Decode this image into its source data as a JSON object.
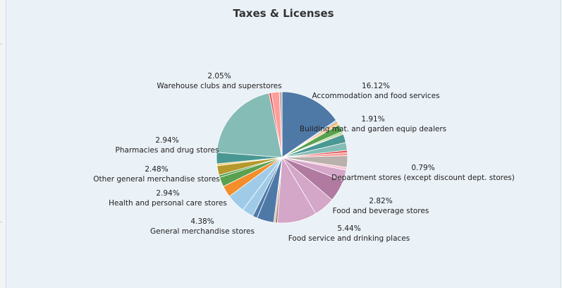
{
  "chart_data": {
    "type": "pie",
    "title": "Taxes & Licenses",
    "slices": [
      {
        "label": "Accommodation and food services",
        "value": 16.12,
        "color": "#4e79a7",
        "show_label": true,
        "display": "16.12%"
      },
      {
        "label": "",
        "value": 0.45,
        "color": "#a0cbe8",
        "show_label": false
      },
      {
        "label": "",
        "value": 0.45,
        "color": "#f28e2b",
        "show_label": false
      },
      {
        "label": "",
        "value": 0.45,
        "color": "#ffbe7d",
        "show_label": false
      },
      {
        "label": "Building mat. and garden equip dealers",
        "value": 1.91,
        "color": "#59a14f",
        "show_label": true,
        "display": "1.91%"
      },
      {
        "label": "",
        "value": 0.45,
        "color": "#8cd17d",
        "show_label": false
      },
      {
        "label": "",
        "value": 0.3,
        "color": "#b6992d",
        "show_label": false
      },
      {
        "label": "",
        "value": 2.2,
        "color": "#499894",
        "show_label": false
      },
      {
        "label": "",
        "value": 2.0,
        "color": "#86bcb6",
        "show_label": false
      },
      {
        "label": "",
        "value": 0.6,
        "color": "#e15759",
        "show_label": false
      },
      {
        "label": "Department stores (except discount dept. stores)",
        "value": 0.79,
        "color": "#ff9d9a",
        "show_label": true,
        "display": "0.79%"
      },
      {
        "label": "",
        "value": 3.0,
        "color": "#bab0ac",
        "show_label": false
      },
      {
        "label": "",
        "value": 0.7,
        "color": "#fabfd2",
        "show_label": false
      },
      {
        "label": "Food and beverage stores",
        "value": 2.82,
        "color": "#d4a6c8",
        "show_label": false,
        "display": "2.82%"
      },
      {
        "label": "",
        "value": 5.6,
        "color": "#b07aa1",
        "show_label": false
      },
      {
        "label": "Food service and drinking places",
        "value": 5.44,
        "color": "#d4a6c8",
        "show_label": true,
        "display": "5.44%"
      },
      {
        "label": "",
        "value": 10.2,
        "color": "#d4a6c8",
        "show_label": false
      },
      {
        "label": "",
        "value": 0.5,
        "color": "#9d7660",
        "show_label": false
      },
      {
        "label": "",
        "value": 0.45,
        "color": "#d7b5a6",
        "show_label": false
      },
      {
        "label": "General merchandise stores",
        "value": 4.38,
        "color": "#4e79a7",
        "show_label": false,
        "display": "4.38%"
      },
      {
        "label": "",
        "value": 1.2,
        "color": "#4e79a7",
        "show_label": false
      },
      {
        "label": "Health and personal care stores",
        "value": 2.94,
        "color": "#a0cbe8",
        "show_label": true,
        "display": "2.94%"
      },
      {
        "label": "",
        "value": 4.9,
        "color": "#a0cbe8",
        "show_label": false
      },
      {
        "label": "",
        "value": 2.94,
        "color": "#f28e2b",
        "show_label": false
      },
      {
        "label": "Other general merchandise stores",
        "value": 2.48,
        "color": "#59a14f",
        "show_label": false,
        "display": "2.48%"
      },
      {
        "label": "",
        "value": 0.6,
        "color": "#59a14f",
        "show_label": false
      },
      {
        "label": "",
        "value": 2.4,
        "color": "#b6992d",
        "show_label": false
      },
      {
        "label": "",
        "value": 0.5,
        "color": "#f1ce63",
        "show_label": false
      },
      {
        "label": "Pharmacies and drug stores",
        "value": 2.94,
        "color": "#499894",
        "show_label": true,
        "display": "2.94%"
      },
      {
        "label": "",
        "value": 21.5,
        "color": "#86bcb6",
        "show_label": false
      },
      {
        "label": "",
        "value": 0.6,
        "color": "#e15759",
        "show_label": false
      },
      {
        "label": "Warehouse clubs and superstores",
        "value": 2.05,
        "color": "#ff9d9a",
        "show_label": false,
        "display": "2.05%"
      },
      {
        "label": "",
        "value": 0.7,
        "color": "#bab0ac",
        "show_label": false
      }
    ],
    "labels": [
      {
        "pct": "16.12%",
        "name": "Accommodation and food services",
        "align": "middle"
      },
      {
        "pct": "1.91%",
        "name": "Building mat. and garden equip dealers",
        "align": "middle"
      },
      {
        "pct": "0.79%",
        "name": "Department stores (except discount dept. stores)",
        "align": "middle"
      },
      {
        "pct": "2.82%",
        "name": "Food and beverage stores",
        "align": "middle"
      },
      {
        "pct": "5.44%",
        "name": "Food service and drinking places",
        "align": "middle"
      },
      {
        "pct": "4.38%",
        "name": "General merchandise stores",
        "align": "middle"
      },
      {
        "pct": "2.94%",
        "name": "Health and personal care stores",
        "align": "middle"
      },
      {
        "pct": "2.48%",
        "name": "Other general merchandise stores",
        "align": "middle"
      },
      {
        "pct": "2.94%",
        "name": "Pharmacies and drug stores",
        "align": "middle"
      },
      {
        "pct": "2.05%",
        "name": "Warehouse clubs and superstores",
        "align": "middle"
      }
    ],
    "legend": "none"
  }
}
